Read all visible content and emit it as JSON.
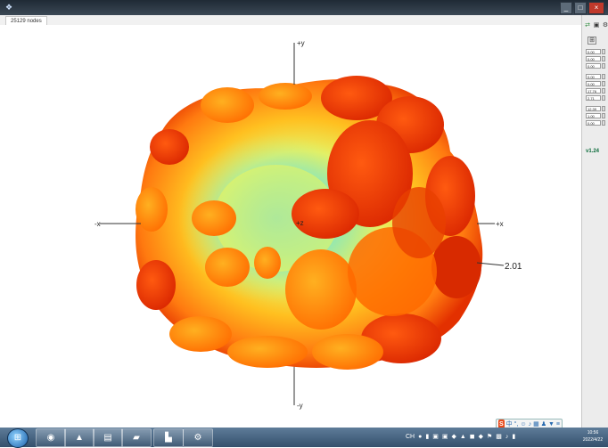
{
  "window": {
    "tab_label": "25129 nodes",
    "controls": [
      "_",
      "□",
      "×"
    ]
  },
  "plot": {
    "axes": {
      "pos_y": "+y",
      "neg_y": "-y",
      "pos_x": "+x",
      "neg_x": "-x",
      "z": "+z"
    },
    "distance_label": "2.01"
  },
  "side_panel": {
    "spinners": [
      "0.00",
      "0.00",
      "0.00",
      "0.00",
      "0.00",
      "17.76",
      "2.71",
      "12.39",
      "1.00",
      "0.00"
    ],
    "version": "v1.24"
  },
  "taskbar": {
    "start_icon": "windows-start-icon",
    "apps": [
      "explorer-icon",
      "chrome-icon",
      "media-icon",
      "folder-icon",
      "app-icon",
      "terminal-icon",
      "settings-icon"
    ],
    "time": "10:56",
    "date": "2022/4/22",
    "lang": "CH"
  },
  "colors": {
    "hot": "#e53300",
    "warm": "#ffb000",
    "cool": "#4fd0e0"
  }
}
